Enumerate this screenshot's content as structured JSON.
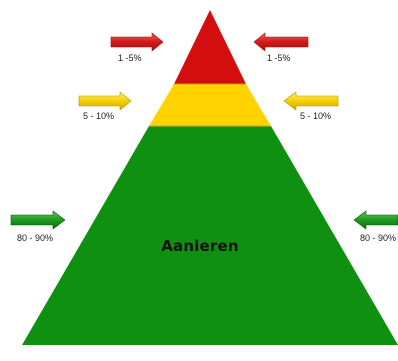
{
  "pyramid": {
    "top_tier": {
      "color": "#d40e0e",
      "left_label": "1 -5%",
      "right_label": "1 -5%"
    },
    "middle_tier": {
      "color": "#ffd200",
      "left_label": "5 - 10%",
      "right_label": "5 - 10%"
    },
    "bottom_tier": {
      "color": "#109010",
      "center_label": "Aanleren",
      "left_label": "80 - 90%",
      "right_label": "80 - 90%"
    }
  },
  "arrows": {
    "red": "#d41818",
    "yellow": "#f4d000",
    "green": "#1e9a1e"
  }
}
